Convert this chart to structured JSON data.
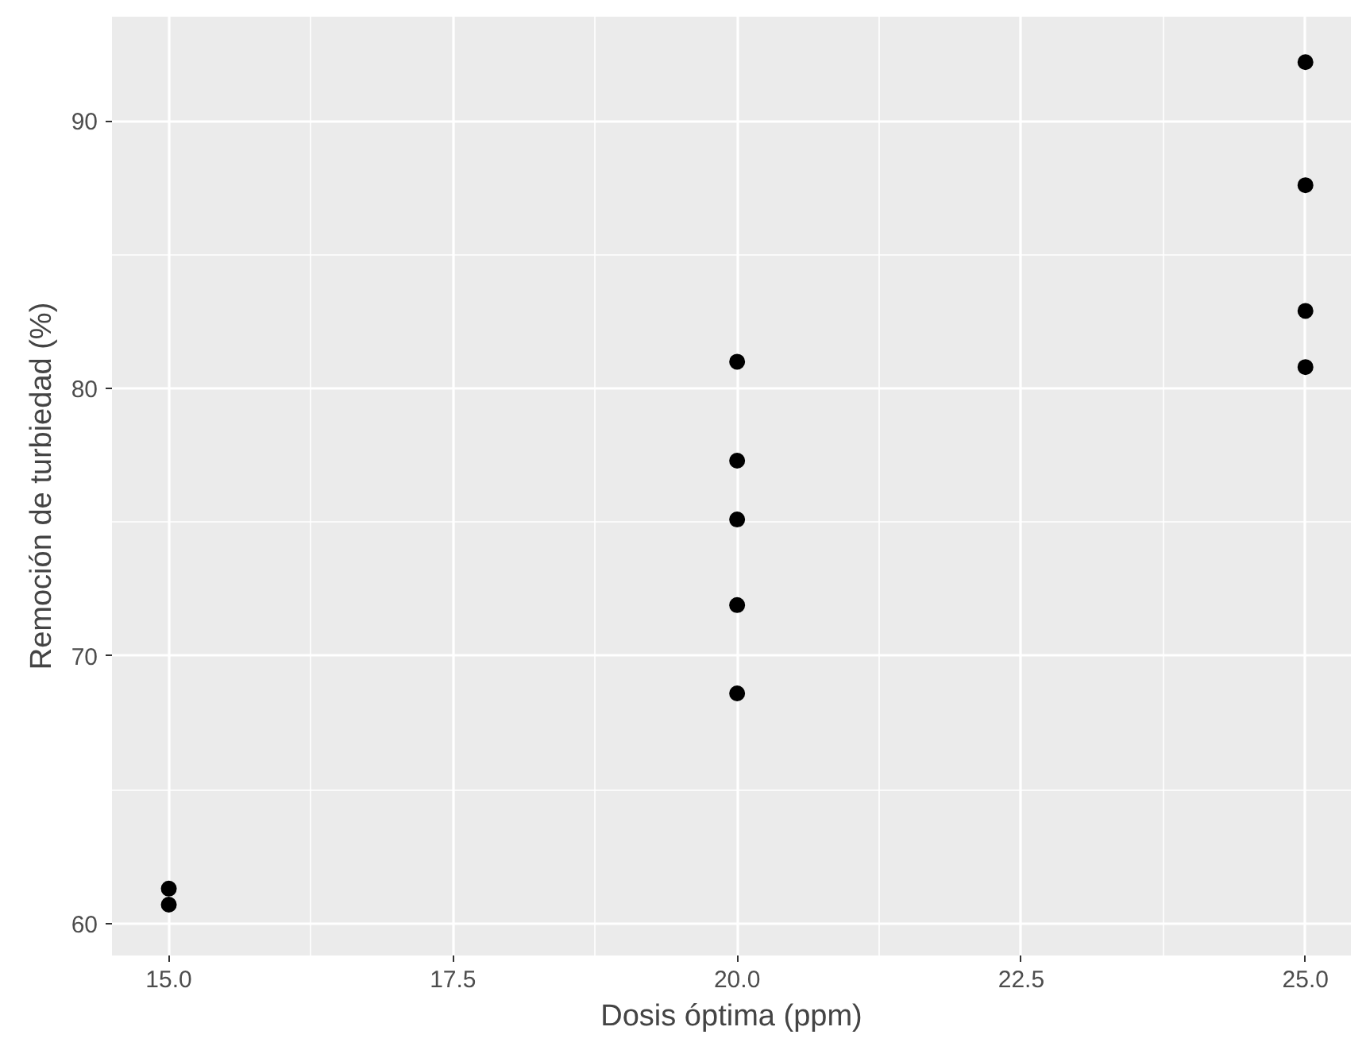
{
  "chart_data": {
    "type": "scatter",
    "xlabel": "Dosis óptima (ppm)",
    "ylabel": "Remoción de turbiedad (%)",
    "x": [
      15,
      15,
      20,
      20,
      20,
      20,
      20,
      25,
      25,
      25,
      25
    ],
    "series": [
      {
        "color": "#000000",
        "values": [
          61.3,
          60.7,
          81.0,
          77.3,
          75.1,
          71.9,
          68.6,
          92.2,
          87.6,
          82.9,
          80.8
        ]
      }
    ],
    "xlim": [
      14.5,
      25.4
    ],
    "ylim": [
      58.8,
      93.9
    ],
    "xticks": [
      {
        "value": 15,
        "label": "15.0"
      },
      {
        "value": 17.5,
        "label": "17.5"
      },
      {
        "value": 20,
        "label": "20.0"
      },
      {
        "value": 22.5,
        "label": "22.5"
      },
      {
        "value": 25,
        "label": "25.0"
      }
    ],
    "yticks": [
      60,
      70,
      80,
      90
    ],
    "grid": true,
    "marker": "circle"
  }
}
